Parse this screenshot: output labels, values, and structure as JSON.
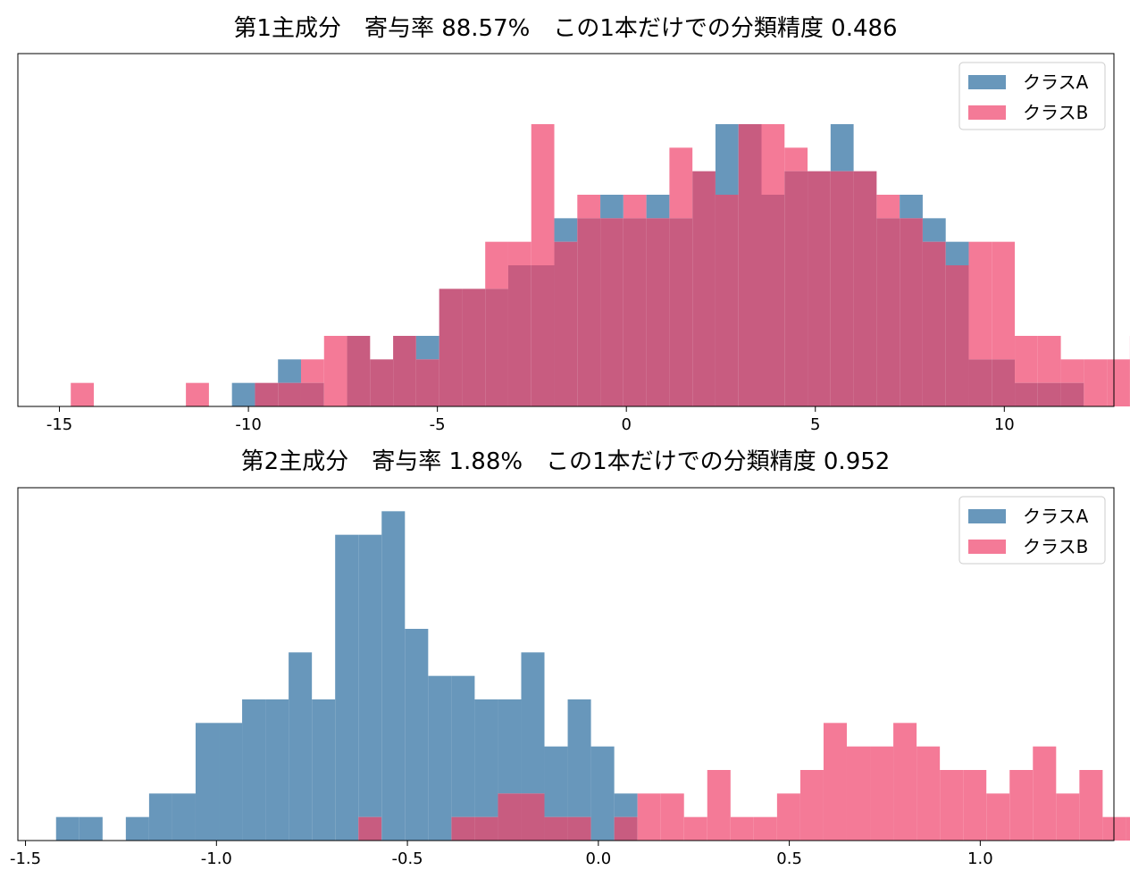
{
  "colors": {
    "class_a": "#6897bb",
    "class_b": "#f47a97",
    "overlap": "#c85c80",
    "frame": "#000000",
    "legend_border": "#cccccc"
  },
  "legend": {
    "placement": "top-right"
  },
  "chart_data": [
    {
      "type": "histogram",
      "title": "第1主成分　寄与率 88.57%　この1本だけでの分類精度 0.486",
      "xlabel": "",
      "ylabel": "",
      "xlim": [
        -16.1,
        12.9
      ],
      "ylim": [
        0,
        15
      ],
      "x_ticks": [
        -15,
        -10,
        -5,
        0,
        5,
        10
      ],
      "x_tick_labels": [
        "-15",
        "-10",
        "-5",
        "0",
        "5",
        "10"
      ],
      "bin_start": -14.7,
      "bin_width": 0.6092,
      "series": [
        {
          "name": "クラスA",
          "counts": [
            0,
            0,
            0,
            0,
            0,
            0,
            0,
            1,
            1,
            2,
            1,
            0,
            3,
            2,
            3,
            3,
            5,
            5,
            5,
            6,
            6,
            8,
            8,
            9,
            8,
            9,
            8,
            10,
            12,
            12,
            9,
            10,
            10,
            12,
            10,
            8,
            9,
            8,
            7,
            2,
            2,
            1,
            1,
            1,
            0,
            0,
            0,
            0,
            0,
            0
          ]
        },
        {
          "name": "クラスB",
          "counts": [
            1,
            0,
            0,
            0,
            0,
            1,
            0,
            0,
            1,
            1,
            2,
            3,
            3,
            2,
            3,
            2,
            5,
            5,
            7,
            7,
            12,
            7,
            9,
            8,
            9,
            8,
            11,
            10,
            9,
            12,
            12,
            11,
            10,
            10,
            10,
            9,
            8,
            7,
            6,
            7,
            7,
            3,
            3,
            2,
            2,
            2,
            3,
            0,
            1,
            1
          ]
        }
      ]
    },
    {
      "type": "histogram",
      "title": "第2主成分　寄与率 1.88%　この1本だけでの分類精度 0.952",
      "xlabel": "",
      "ylabel": "",
      "xlim": [
        -1.52,
        1.35
      ],
      "ylim": [
        0,
        15
      ],
      "x_ticks": [
        -1.5,
        -1.0,
        -0.5,
        0.0,
        0.5,
        1.0
      ],
      "x_tick_labels": [
        "-1.5",
        "-1.0",
        "-0.5",
        "0.0",
        "0.5",
        "1.0"
      ],
      "bin_start": -1.42,
      "bin_width": 0.0609,
      "series": [
        {
          "name": "クラスA",
          "counts": [
            1,
            1,
            0,
            1,
            2,
            2,
            5,
            5,
            6,
            6,
            8,
            6,
            13,
            13,
            14,
            9,
            7,
            7,
            6,
            6,
            8,
            4,
            6,
            4,
            2,
            0,
            0,
            0,
            0,
            0,
            0,
            0,
            0,
            0,
            0,
            0,
            0,
            0,
            0,
            0,
            0,
            0,
            0,
            0,
            0,
            0,
            0,
            0,
            0,
            0
          ]
        },
        {
          "name": "クラスB",
          "counts": [
            0,
            0,
            0,
            0,
            0,
            0,
            0,
            0,
            0,
            0,
            0,
            0,
            0,
            1,
            0,
            0,
            0,
            1,
            1,
            2,
            2,
            1,
            1,
            0,
            1,
            2,
            2,
            1,
            3,
            1,
            1,
            2,
            3,
            5,
            4,
            4,
            5,
            4,
            3,
            3,
            2,
            3,
            4,
            2,
            3,
            1,
            1,
            1,
            2,
            2
          ]
        }
      ]
    }
  ]
}
